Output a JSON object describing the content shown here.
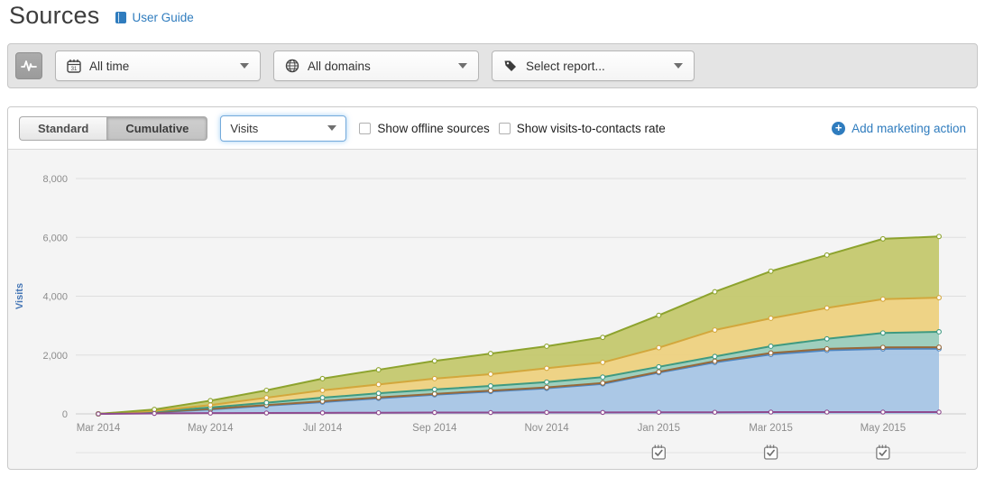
{
  "page": {
    "title": "Sources",
    "user_guide_label": "User Guide"
  },
  "accent_color": "#2f7cbe",
  "filter_bar": {
    "time_range": "All time",
    "domain": "All domains",
    "report_placeholder": "Select report..."
  },
  "toolbar": {
    "tabs": [
      {
        "label": "Standard",
        "active": false
      },
      {
        "label": "Cumulative",
        "active": true
      }
    ],
    "metric_label": "Visits",
    "checkboxes": [
      {
        "label": "Show offline sources",
        "checked": false
      },
      {
        "label": "Show visits-to-contacts rate",
        "checked": false
      }
    ],
    "add_action_label": "Add marketing action"
  },
  "icons": [
    "chart-pulse-icon",
    "calendar-icon",
    "globe-icon",
    "tag-icon",
    "book-icon",
    "plus-circle-icon",
    "caret-down-icon",
    "checkbox",
    "marketing-action-calendar-icon"
  ],
  "chart_data": {
    "type": "area",
    "stacked": true,
    "cumulative": true,
    "title": "",
    "xlabel": "",
    "ylabel": "Visits",
    "ylabel_color": "#4576b5",
    "ylim": [
      0,
      8000
    ],
    "yticks": [
      0,
      2000,
      4000,
      6000,
      8000
    ],
    "ytick_labels": [
      "0",
      "2,000",
      "4,000",
      "6,000",
      "8,000"
    ],
    "xtick_every": 2,
    "grid": true,
    "legend": "none",
    "x": [
      "Mar 2014",
      "Apr 2014",
      "May 2014",
      "Jun 2014",
      "Jul 2014",
      "Aug 2014",
      "Sep 2014",
      "Oct 2014",
      "Nov 2014",
      "Dec 2014",
      "Jan 2015",
      "Feb 2015",
      "Mar 2015",
      "Apr 2015",
      "May 2015",
      "Jun 2015"
    ],
    "note": "stacked cumulative visits; series listed bottom-to-top; values are cumulative stack tops read from the y-axis",
    "series": [
      {
        "name": "series-blue",
        "fill": "#a6c5e5",
        "line": "#4e86c2",
        "cumulative_top": [
          0,
          50,
          150,
          280,
          400,
          530,
          650,
          760,
          870,
          1020,
          1400,
          1750,
          2020,
          2160,
          2210,
          2215
        ]
      },
      {
        "name": "series-brown",
        "fill": "#c9a36b",
        "line": "#97693a",
        "cumulative_top": [
          0,
          60,
          170,
          300,
          430,
          560,
          680,
          790,
          900,
          1050,
          1430,
          1790,
          2070,
          2210,
          2260,
          2265
        ]
      },
      {
        "name": "series-teal",
        "fill": "#9accbb",
        "line": "#3f9a81",
        "cumulative_top": [
          0,
          80,
          220,
          380,
          550,
          700,
          830,
          950,
          1080,
          1250,
          1600,
          1950,
          2300,
          2550,
          2750,
          2790
        ]
      },
      {
        "name": "series-yellow",
        "fill": "#edd180",
        "line": "#d3a73c",
        "cumulative_top": [
          0,
          100,
          300,
          550,
          800,
          1000,
          1200,
          1350,
          1550,
          1750,
          2250,
          2850,
          3250,
          3600,
          3900,
          3950
        ]
      },
      {
        "name": "series-olive",
        "fill": "#c4c86e",
        "line": "#8da32e",
        "cumulative_top": [
          0,
          150,
          450,
          800,
          1200,
          1500,
          1800,
          2050,
          2300,
          2600,
          3350,
          4150,
          4850,
          5400,
          5950,
          6030
        ]
      }
    ],
    "offline_line": {
      "name": "series-purple",
      "color": "#8e4a8e",
      "values": [
        0,
        15,
        25,
        30,
        35,
        40,
        45,
        45,
        50,
        50,
        55,
        55,
        60,
        60,
        60,
        60
      ]
    },
    "action_markers": [
      "Jan 2015",
      "Mar 2015",
      "May 2015"
    ]
  }
}
